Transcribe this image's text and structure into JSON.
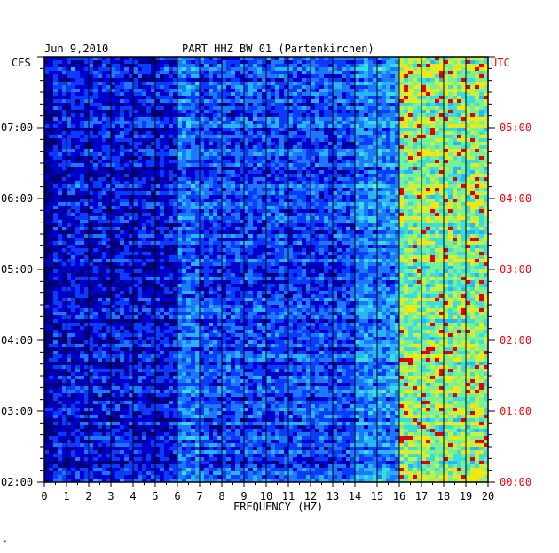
{
  "chart_data": {
    "type": "heatmap",
    "title": "PART HHZ BW 01 (Partenkirchen)",
    "date": "Jun 9,2010",
    "left_timezone": "CES",
    "right_timezone": "UTC",
    "xlabel": "FREQUENCY (HZ)",
    "xlim": [
      0,
      20
    ],
    "x_ticks": [
      "0",
      "1",
      "2",
      "3",
      "4",
      "5",
      "6",
      "7",
      "8",
      "9",
      "10",
      "11",
      "12",
      "13",
      "14",
      "15",
      "16",
      "17",
      "18",
      "19",
      "20"
    ],
    "time_range_hours_ces": [
      2.0,
      8.0
    ],
    "y_ticks_left": [
      {
        "hour": 7,
        "label": "07:00"
      },
      {
        "hour": 6,
        "label": "06:00"
      },
      {
        "hour": 5,
        "label": "05:00"
      },
      {
        "hour": 4,
        "label": "04:00"
      },
      {
        "hour": 3,
        "label": "03:00"
      },
      {
        "hour": 2,
        "label": "02:00"
      }
    ],
    "y_ticks_right": [
      {
        "hour": 7,
        "label": "05:00"
      },
      {
        "hour": 6,
        "label": "04:00"
      },
      {
        "hour": 5,
        "label": "03:00"
      },
      {
        "hour": 4,
        "label": "02:00"
      },
      {
        "hour": 3,
        "label": "01:00"
      },
      {
        "hour": 2,
        "label": "00:00"
      }
    ],
    "colormap": [
      "#00007a",
      "#0000cc",
      "#0a3cff",
      "#1e78ff",
      "#28b4ff",
      "#3cdcdc",
      "#78f096",
      "#c8f03c",
      "#ffe600",
      "#ff5a00",
      "#e60000"
    ],
    "frame_color": "#000000",
    "right_label_color": "#ff0000",
    "description_bands": [
      {
        "freq_from": 0,
        "freq_to": 6,
        "level": "low"
      },
      {
        "freq_from": 6,
        "freq_to": 16,
        "level": "moderate"
      },
      {
        "freq_from": 16,
        "freq_to": 20,
        "level": "high"
      }
    ]
  },
  "footer_mark": "*"
}
